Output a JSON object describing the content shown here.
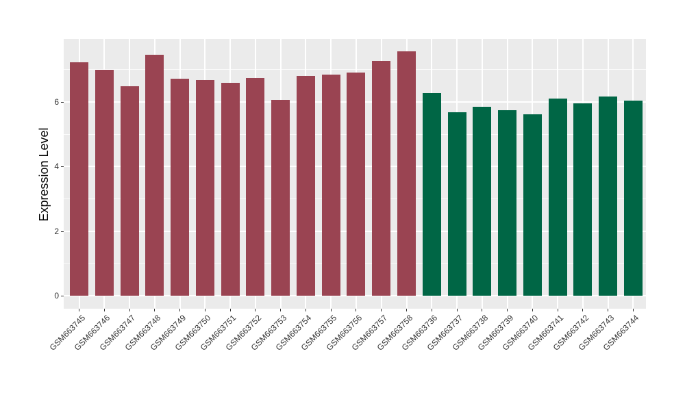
{
  "figure": {
    "background": "#FFFFFF"
  },
  "chart_data": {
    "type": "bar",
    "title": "",
    "xlabel": "",
    "ylabel": "Expression Level",
    "ylim": [
      -0.4,
      7.95
    ],
    "yticks": [
      0,
      2,
      4,
      6
    ],
    "yticks_minor": [
      1,
      3,
      5,
      7
    ],
    "legend_position": "none",
    "grid": "major-and-minor-horizontal, major-vertical-per-category",
    "panel_background": "#EBEBEB",
    "gridline_color": "#FFFFFF",
    "tick_color": "#333333",
    "axis_text_color": "#333333",
    "axis_title_color": "#000000",
    "group_colors": {
      "maroon_group": "#9A4452",
      "green_group": "#006645"
    },
    "bars": [
      {
        "label": "GSM663745",
        "value": 7.22,
        "color": "#9A4452"
      },
      {
        "label": "GSM663746",
        "value": 7.0,
        "color": "#9A4452"
      },
      {
        "label": "GSM663747",
        "value": 6.48,
        "color": "#9A4452"
      },
      {
        "label": "GSM663748",
        "value": 7.46,
        "color": "#9A4452"
      },
      {
        "label": "GSM663749",
        "value": 6.72,
        "color": "#9A4452"
      },
      {
        "label": "GSM663750",
        "value": 6.68,
        "color": "#9A4452"
      },
      {
        "label": "GSM663751",
        "value": 6.59,
        "color": "#9A4452"
      },
      {
        "label": "GSM663752",
        "value": 6.74,
        "color": "#9A4452"
      },
      {
        "label": "GSM663753",
        "value": 6.06,
        "color": "#9A4452"
      },
      {
        "label": "GSM663754",
        "value": 6.81,
        "color": "#9A4452"
      },
      {
        "label": "GSM663755",
        "value": 6.84,
        "color": "#9A4452"
      },
      {
        "label": "GSM663756",
        "value": 6.91,
        "color": "#9A4452"
      },
      {
        "label": "GSM663757",
        "value": 7.27,
        "color": "#9A4452"
      },
      {
        "label": "GSM663758",
        "value": 7.57,
        "color": "#9A4452"
      },
      {
        "label": "GSM663736",
        "value": 6.27,
        "color": "#006645"
      },
      {
        "label": "GSM663737",
        "value": 5.68,
        "color": "#006645"
      },
      {
        "label": "GSM663738",
        "value": 5.85,
        "color": "#006645"
      },
      {
        "label": "GSM663739",
        "value": 5.74,
        "color": "#006645"
      },
      {
        "label": "GSM663740",
        "value": 5.61,
        "color": "#006645"
      },
      {
        "label": "GSM663741",
        "value": 6.1,
        "color": "#006645"
      },
      {
        "label": "GSM663742",
        "value": 5.95,
        "color": "#006645"
      },
      {
        "label": "GSM663743",
        "value": 6.17,
        "color": "#006645"
      },
      {
        "label": "GSM663744",
        "value": 6.04,
        "color": "#006645"
      }
    ]
  }
}
